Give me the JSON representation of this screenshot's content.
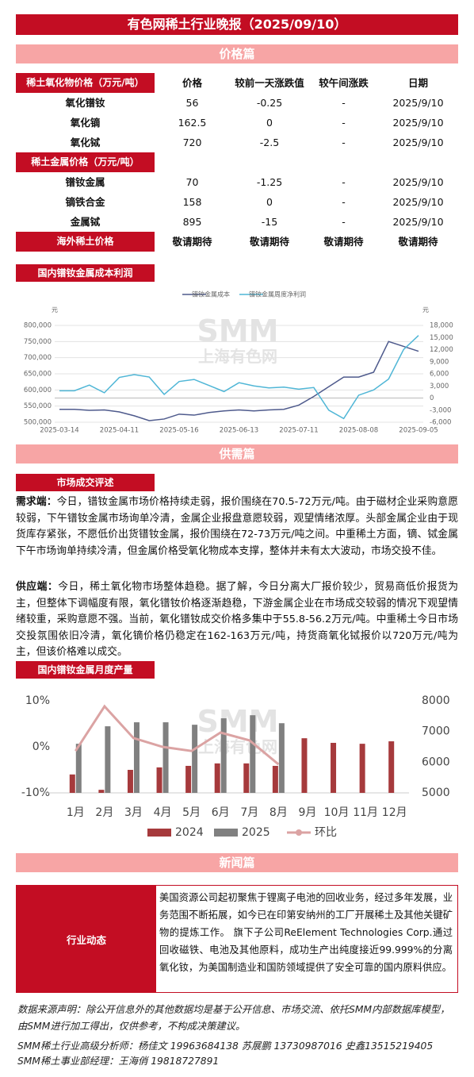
{
  "header": {
    "title": "有色网稀土行业晚报（2025/09/10）"
  },
  "price_section": {
    "title": "价格篇",
    "table": {
      "oxide_header": [
        "稀土氧化物价格（万元/吨）",
        "价格",
        "较前一天涨跌值",
        "较午间涨跌",
        "日期"
      ],
      "oxide_rows": [
        [
          "氧化镨钕",
          "56",
          "-0.25",
          "-",
          "2025/9/10"
        ],
        [
          "氧化镝",
          "162.5",
          "0",
          "-",
          "2025/9/10"
        ],
        [
          "氧化铽",
          "720",
          "-2.5",
          "-",
          "2025/9/10"
        ]
      ],
      "metal_header": [
        "稀土金属价格（万元/吨）"
      ],
      "metal_rows": [
        [
          "镨钕金属",
          "70",
          "-1.25",
          "-",
          "2025/9/10"
        ],
        [
          "镝铁合金",
          "158",
          "0",
          "-",
          "2025/9/10"
        ],
        [
          "金属铽",
          "895",
          "-15",
          "-",
          "2025/9/10"
        ]
      ],
      "overseas_row": [
        "海外稀土价格",
        "敬请期待",
        "敬请期待",
        "敬请期待",
        "敬请期待"
      ]
    }
  },
  "chart_data": [
    {
      "type": "line",
      "title": "国内镨钕金属成本利润",
      "watermark": "SMM",
      "watermark_sub": "上海有色网",
      "categories": [
        "2025-03-14",
        null,
        null,
        null,
        "2025-04-11",
        null,
        null,
        null,
        "2025-05-16",
        null,
        null,
        null,
        "2025-06-13",
        null,
        null,
        null,
        "2025-07-11",
        null,
        null,
        null,
        "2025-08-08",
        null,
        null,
        null,
        "2025-09-05"
      ],
      "series": [
        {
          "name": "镨钕金属成本",
          "color": "#4e5a8c",
          "axis": "y",
          "values": [
            540000,
            540000,
            537000,
            538000,
            532000,
            520000,
            505000,
            510000,
            525000,
            522000,
            530000,
            535000,
            538000,
            535000,
            538000,
            540000,
            553000,
            580000,
            610000,
            640000,
            640000,
            655000,
            750000,
            735000,
            720000
          ]
        },
        {
          "name": "镨钕金属周度净利润",
          "color": "#4fb6d6",
          "axis": "y2",
          "values": [
            1800,
            1800,
            3200,
            1300,
            5100,
            5800,
            5200,
            900,
            4100,
            4600,
            3100,
            1600,
            3800,
            3000,
            2500,
            2700,
            2200,
            2600,
            -3000,
            -5100,
            700,
            2000,
            4700,
            12000,
            15500
          ]
        }
      ],
      "ylabel": "元",
      "y2label": "元",
      "ylim": [
        500000,
        800000
      ],
      "yticks": [
        {
          "value": 500000,
          "label": "500,000"
        },
        {
          "value": 550000,
          "label": "550,000"
        },
        {
          "value": 600000,
          "label": "600,000"
        },
        {
          "value": 650000,
          "label": "650,000"
        },
        {
          "value": 700000,
          "label": "700,000"
        },
        {
          "value": 750000,
          "label": "750,000"
        },
        {
          "value": 800000,
          "label": "800,000"
        }
      ],
      "y2lim": [
        -6000,
        18000
      ],
      "y2ticks": [
        {
          "value": -6000,
          "label": "-6,000"
        },
        {
          "value": -3000,
          "label": "-3,000"
        },
        0,
        {
          "value": 3000,
          "label": "3,000"
        },
        {
          "value": 6000,
          "label": "6,000"
        },
        {
          "value": 9000,
          "label": "9,000"
        },
        {
          "value": 12000,
          "label": "12,000"
        },
        {
          "value": 15000,
          "label": "15,000"
        },
        {
          "value": 18000,
          "label": "18,000"
        }
      ],
      "grid": true
    },
    {
      "type": "bar",
      "title": "国内镨钕金属月度产量",
      "watermark": "SMM",
      "watermark_sub": "上海有色网",
      "categories": [
        "1月",
        "2月",
        "3月",
        "4月",
        "5月",
        "6月",
        "7月",
        "8月",
        "9月",
        "10月",
        "11月",
        "12月"
      ],
      "series": [
        {
          "name": "2024",
          "type": "bar",
          "axis": "y2",
          "color": "#a63a3c",
          "values": [
            5600,
            5100,
            5750,
            5830,
            5880,
            5960,
            5960,
            5880,
            6780,
            6630,
            6600,
            6680
          ]
        },
        {
          "name": "2025",
          "type": "bar",
          "axis": "y2",
          "color": "#808080",
          "values": [
            6600,
            7170,
            7300,
            7300,
            7220,
            7430,
            7530,
            7270,
            null,
            null,
            null,
            null
          ]
        },
        {
          "name": "环比",
          "type": "line",
          "axis": "y",
          "color": "#dba3a3",
          "values": [
            -0.9,
            8.8,
            1.9,
            0,
            -0.9,
            3.1,
            1.4,
            -3.8,
            null,
            null,
            null,
            null
          ]
        }
      ],
      "ylim": [
        -10,
        10
      ],
      "yticks": [
        {
          "value": -10,
          "label": "-10%"
        },
        {
          "value": 0,
          "label": "0%"
        },
        {
          "value": 10,
          "label": "10%"
        }
      ],
      "y2lim": [
        5000,
        8000
      ],
      "y2ticks": [
        5000,
        6000,
        7000,
        8000
      ],
      "grid": false
    }
  ],
  "supply_section": {
    "title": "供需篇",
    "tag": "市场成交评述",
    "demand": {
      "label": "需求端：",
      "text": "今日，镨钕金属市场价格持续走弱，报价围绕在70.5-72万元/吨。由于磁材企业采购意愿较弱，下午镨钕金属市场询单冷清，金属企业报盘意愿较弱，观望情绪浓厚。头部金属企业由于现货库存紧张，不愿低价出货镨钕金属，报价围绕在72-73万元/吨之间。中重稀土方面，镝、铽金属下午市场询单持续冷清，但金属价格受氧化物成本支撑，整体并未有太大波动，市场交投不佳。"
    },
    "supply": {
      "label": "供应端：",
      "text": "今日，稀土氧化物市场整体趋稳。据了解，今日分离大厂报价较少，贸易商低价报货为主，但整体下调幅度有限，氧化镨钕价格逐渐趋稳，下游金属企业在市场成交较弱的情况下观望情绪较重，采购意愿不强。当前，氧化镨钕成交价格多集中于55.8-56.2万元/吨。中重稀土今日市场交投氛围依旧冷清，氧化镝价格仍稳定在162-163万元/吨，持货商氧化铽报价以720万元/吨为主，但该价格难以成交。"
    }
  },
  "news_section": {
    "title": "新闻篇",
    "label": "行业动态",
    "text": "美国资源公司起初聚焦于锂离子电池的回收业务，经过多年发展，业务范围不断拓展，如今已在印第安纳州的工厂开展稀土及其他关键矿物的提炼工作。 旗下子公司ReElement Technologies Corp.通过回收磁铁、电池及其他原料，成功生产出纯度接近99.999%的分离氧化钕，为美国制造业和国防领域提供了安全可靠的国内原料供应。"
  },
  "footer": {
    "disclaimer": "数据来源声明：除公开信息外的其他数据均是基于公开信息、市场交流、依托SMM内部数据库模型，由SMM进行加工得出，仅供参考，不构成决策建议。",
    "analysts": "SMM稀土行业高级分析师：杨佳文 19963684138  苏展鹏 13730987016 史鑫13515219405",
    "manager": "SMM稀土事业部经理：王海俏 19818727891"
  }
}
